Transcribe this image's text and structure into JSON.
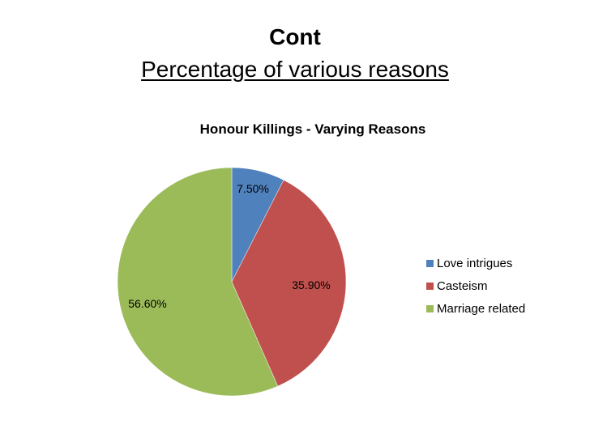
{
  "slide": {
    "title": "Cont",
    "subtitle": "Percentage of various reasons"
  },
  "chart_data": {
    "type": "pie",
    "title": "Honour Killings -  Varying Reasons",
    "categories": [
      "Love intrigues",
      "Casteism",
      "Marriage related"
    ],
    "values": [
      7.5,
      35.9,
      56.6
    ],
    "labels": [
      "7.50%",
      "35.90%",
      "56.60%"
    ],
    "colors": [
      "#4F81BD",
      "#C0504D",
      "#9BBB59"
    ],
    "legend_position": "right"
  }
}
